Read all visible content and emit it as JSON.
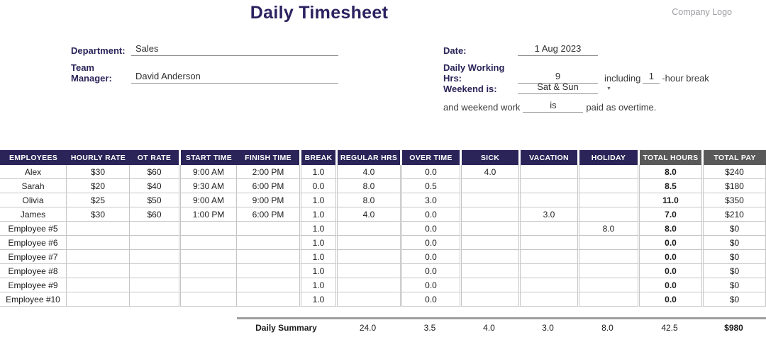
{
  "header": {
    "title": "Daily Timesheet",
    "company_logo": "Company Logo"
  },
  "form": {
    "department_label": "Department:",
    "department_value": "Sales",
    "manager_label": "Team Manager:",
    "manager_value": "David Anderson",
    "date_label": "Date:",
    "date_value": "1 Aug 2023",
    "working_hrs_label": "Daily Working Hrs:",
    "working_hrs_value": "9",
    "including_text": "including",
    "break_hours": "1",
    "break_suffix": "-hour break",
    "weekend_label": "Weekend is:",
    "weekend_value": "Sat & Sun",
    "weekend_sentence_prefix": "and weekend work",
    "weekend_sentence_fill": "is",
    "weekend_sentence_suffix": "paid as overtime."
  },
  "icons": {
    "dropdown_caret": "▼"
  },
  "table": {
    "columns": [
      "EMPLOYEES",
      "HOURLY RATE",
      "OT RATE",
      "START TIME",
      "FINISH TIME",
      "BREAK",
      "REGULAR HRS",
      "OVER TIME",
      "SICK",
      "VACATION",
      "HOLIDAY",
      "TOTAL HOURS",
      "TOTAL PAY"
    ],
    "rows": [
      [
        "Alex",
        "$30",
        "$60",
        "9:00 AM",
        "2:00 PM",
        "1.0",
        "4.0",
        "0.0",
        "4.0",
        "",
        "",
        "8.0",
        "$240"
      ],
      [
        "Sarah",
        "$20",
        "$40",
        "9:30 AM",
        "6:00 PM",
        "0.0",
        "8.0",
        "0.5",
        "",
        "",
        "",
        "8.5",
        "$180"
      ],
      [
        "Olivia",
        "$25",
        "$50",
        "9:00 AM",
        "9:00 PM",
        "1.0",
        "8.0",
        "3.0",
        "",
        "",
        "",
        "11.0",
        "$350"
      ],
      [
        "James",
        "$30",
        "$60",
        "1:00 PM",
        "6:00 PM",
        "1.0",
        "4.0",
        "0.0",
        "",
        "3.0",
        "",
        "7.0",
        "$210"
      ],
      [
        "Employee #5",
        "",
        "",
        "",
        "",
        "1.0",
        "",
        "0.0",
        "",
        "",
        "8.0",
        "8.0",
        "$0"
      ],
      [
        "Employee #6",
        "",
        "",
        "",
        "",
        "1.0",
        "",
        "0.0",
        "",
        "",
        "",
        "0.0",
        "$0"
      ],
      [
        "Employee #7",
        "",
        "",
        "",
        "",
        "1.0",
        "",
        "0.0",
        "",
        "",
        "",
        "0.0",
        "$0"
      ],
      [
        "Employee #8",
        "",
        "",
        "",
        "",
        "1.0",
        "",
        "0.0",
        "",
        "",
        "",
        "0.0",
        "$0"
      ],
      [
        "Employee #9",
        "",
        "",
        "",
        "",
        "1.0",
        "",
        "0.0",
        "",
        "",
        "",
        "0.0",
        "$0"
      ],
      [
        "Employee #10",
        "",
        "",
        "",
        "",
        "1.0",
        "",
        "0.0",
        "",
        "",
        "",
        "0.0",
        "$0"
      ]
    ],
    "summary": {
      "label": "Daily Summary",
      "regular_hrs": "24.0",
      "over_time": "3.5",
      "sick": "4.0",
      "vacation": "3.0",
      "holiday": "8.0",
      "total_hours": "42.5",
      "total_pay": "$980"
    }
  },
  "colors": {
    "header_navy": "#2A2459",
    "header_gray": "#595959",
    "title_navy": "#2B2260",
    "border_gray": "#C6C6C6",
    "summary_line_gray": "#9E9E9E",
    "logo_gray": "#9C9CA1"
  }
}
